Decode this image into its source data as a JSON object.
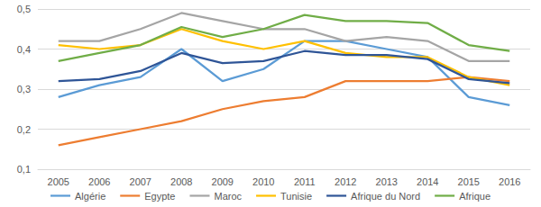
{
  "chart_data": {
    "type": "line",
    "categories": [
      "2005",
      "2006",
      "2007",
      "2008",
      "2009",
      "2010",
      "2011",
      "2012",
      "2013",
      "2014",
      "2015",
      "2016"
    ],
    "series": [
      {
        "name": "Algérie",
        "color": "#5B9BD5",
        "values": [
          0.28,
          0.31,
          0.33,
          0.4,
          0.32,
          0.35,
          0.42,
          0.42,
          0.4,
          0.38,
          0.28,
          0.26
        ]
      },
      {
        "name": "Egypte",
        "color": "#ED7D31",
        "values": [
          0.16,
          0.18,
          0.2,
          0.22,
          0.25,
          0.27,
          0.28,
          0.32,
          0.32,
          0.32,
          0.33,
          0.32
        ]
      },
      {
        "name": "Maroc",
        "color": "#A5A5A5",
        "values": [
          0.42,
          0.42,
          0.45,
          0.49,
          0.47,
          0.45,
          0.45,
          0.42,
          0.43,
          0.42,
          0.37,
          0.37
        ]
      },
      {
        "name": "Tunisie",
        "color": "#FFC000",
        "values": [
          0.41,
          0.4,
          0.41,
          0.45,
          0.42,
          0.4,
          0.42,
          0.39,
          0.38,
          0.38,
          0.33,
          0.31
        ]
      },
      {
        "name": "Afrique du Nord",
        "color": "#2F5597",
        "values": [
          0.32,
          0.325,
          0.345,
          0.39,
          0.365,
          0.37,
          0.395,
          0.385,
          0.385,
          0.375,
          0.325,
          0.315
        ]
      },
      {
        "name": "Afrique",
        "color": "#70AD47",
        "values": [
          0.37,
          0.39,
          0.41,
          0.455,
          0.43,
          0.45,
          0.485,
          0.47,
          0.47,
          0.465,
          0.41,
          0.395
        ]
      }
    ],
    "ylim": [
      0.1,
      0.5
    ],
    "yticks": [
      {
        "value": 0.1,
        "label": "0,1"
      },
      {
        "value": 0.2,
        "label": "0,2"
      },
      {
        "value": 0.3,
        "label": "0,3"
      },
      {
        "value": 0.4,
        "label": "0,4"
      },
      {
        "value": 0.5,
        "label": "0,5"
      }
    ],
    "grid": true,
    "legend": "bottom"
  }
}
